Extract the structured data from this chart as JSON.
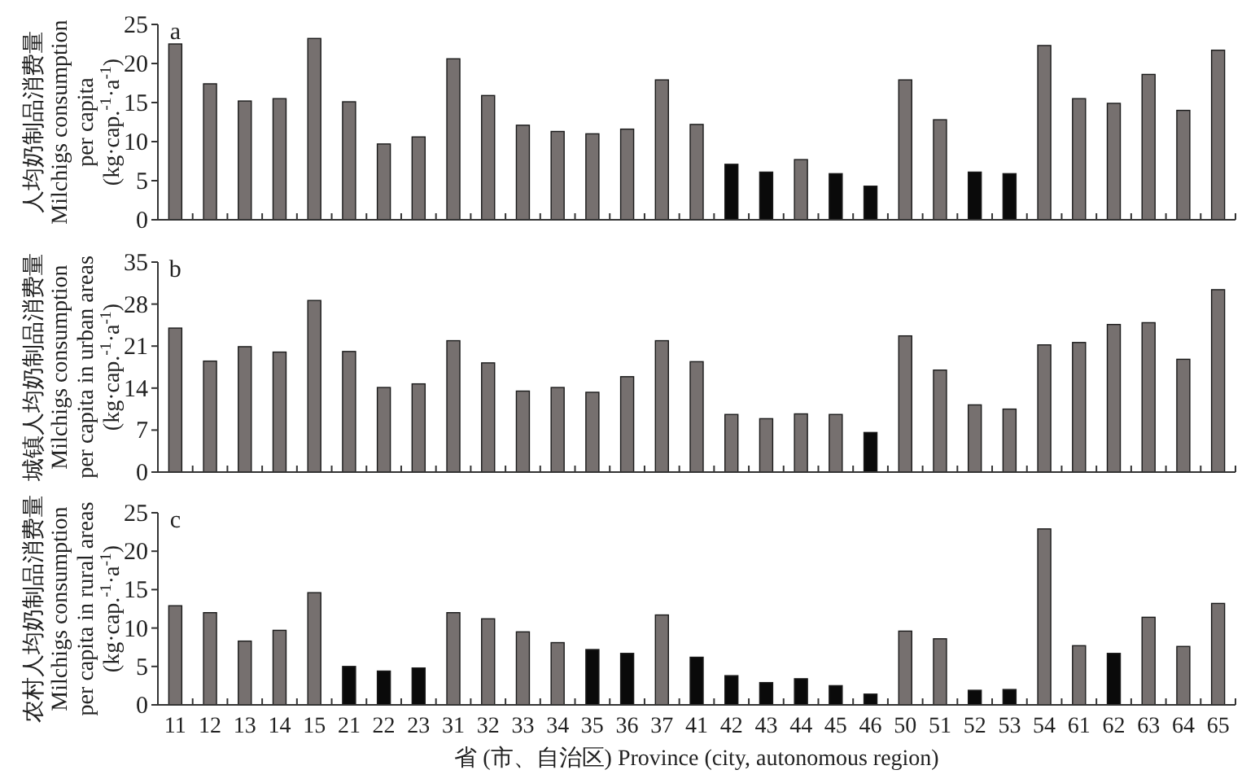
{
  "chart_data": [
    {
      "type": "bar",
      "categories": [
        null,
        null,
        null,
        null,
        null,
        null,
        null,
        null,
        null,
        null,
        null,
        null,
        null,
        null,
        null,
        null,
        null,
        null,
        null,
        null,
        null,
        null,
        null,
        null,
        null,
        null,
        null,
        null,
        null,
        null,
        null
      ],
      "values": [
        22.5,
        17.4,
        15.2,
        15.5,
        23.2,
        15.1,
        9.7,
        10.6,
        20.6,
        15.9,
        12.1,
        11.3,
        11.0,
        11.6,
        17.9,
        12.2,
        7.1,
        6.1,
        7.7,
        5.9,
        4.3,
        17.9,
        12.8,
        6.1,
        5.9,
        22.3,
        15.5,
        14.9,
        18.6,
        14.0,
        21.7
      ],
      "colors": [
        "#76706f",
        "#76706f",
        "#76706f",
        "#76706f",
        "#76706f",
        "#76706f",
        "#76706f",
        "#76706f",
        "#76706f",
        "#76706f",
        "#76706f",
        "#76706f",
        "#76706f",
        "#76706f",
        "#76706f",
        "#76706f",
        "#0a0a0a",
        "#0a0a0a",
        "#76706f",
        "#0a0a0a",
        "#0a0a0a",
        "#76706f",
        "#76706f",
        "#0a0a0a",
        "#0a0a0a",
        "#76706f",
        "#76706f",
        "#76706f",
        "#76706f",
        "#76706f",
        "#76706f"
      ],
      "ylabel": "人均奶制品消费量\nMilchigs consumption\nper capita\n(kg·cap.$^{-1}$·a$^{-1}$)",
      "ylim": [
        0,
        25
      ],
      "yticks": [
        0,
        5,
        10,
        15,
        20,
        25
      ],
      "tick_labels": "y",
      "annotations": [
        "a"
      ]
    },
    {
      "type": "bar",
      "categories": [
        null,
        null,
        null,
        null,
        null,
        null,
        null,
        null,
        null,
        null,
        null,
        null,
        null,
        null,
        null,
        null,
        null,
        null,
        null,
        null,
        null,
        null,
        null,
        null,
        null,
        null,
        null,
        null,
        null,
        null,
        null
      ],
      "values": [
        24.0,
        18.5,
        20.9,
        20.0,
        28.6,
        20.1,
        14.1,
        14.7,
        21.9,
        18.2,
        13.5,
        14.1,
        13.3,
        15.9,
        21.9,
        18.4,
        9.6,
        8.9,
        9.7,
        9.6,
        6.6,
        22.7,
        17.0,
        11.2,
        10.5,
        21.2,
        21.6,
        24.6,
        24.9,
        18.8,
        30.4
      ],
      "colors": [
        "#76706f",
        "#76706f",
        "#76706f",
        "#76706f",
        "#76706f",
        "#76706f",
        "#76706f",
        "#76706f",
        "#76706f",
        "#76706f",
        "#76706f",
        "#76706f",
        "#76706f",
        "#76706f",
        "#76706f",
        "#76706f",
        "#76706f",
        "#76706f",
        "#76706f",
        "#76706f",
        "#0a0a0a",
        "#76706f",
        "#76706f",
        "#76706f",
        "#76706f",
        "#76706f",
        "#76706f",
        "#76706f",
        "#76706f",
        "#76706f",
        "#76706f"
      ],
      "ylabel": "城镇人均奶制品消费量\nMilchigs consumption\nper capita in urban areas\n(kg·cap.$^{-1}$·a$^{-1}$)",
      "ylim": [
        0,
        35
      ],
      "yticks": [
        0,
        7,
        14,
        21,
        28,
        35
      ],
      "tick_labels": "y",
      "annotations": [
        "b"
      ]
    },
    {
      "type": "bar",
      "categories": [
        "11",
        "12",
        "13",
        "14",
        "15",
        "21",
        "22",
        "23",
        "31",
        "32",
        "33",
        "34",
        "35",
        "36",
        "37",
        "41",
        "42",
        "43",
        "44",
        "45",
        "46",
        "50",
        "51",
        "52",
        "53",
        "54",
        "61",
        "62",
        "63",
        "64",
        "65"
      ],
      "values": [
        12.9,
        12.0,
        8.3,
        9.7,
        14.6,
        5.0,
        4.4,
        4.8,
        12.0,
        11.2,
        9.5,
        8.1,
        7.2,
        6.7,
        11.7,
        6.2,
        3.8,
        2.9,
        3.4,
        2.5,
        1.4,
        9.6,
        8.6,
        1.9,
        2.0,
        22.9,
        7.7,
        6.7,
        11.4,
        7.6,
        13.2
      ],
      "colors": [
        "#76706f",
        "#76706f",
        "#76706f",
        "#76706f",
        "#76706f",
        "#0a0a0a",
        "#0a0a0a",
        "#0a0a0a",
        "#76706f",
        "#76706f",
        "#76706f",
        "#76706f",
        "#0a0a0a",
        "#0a0a0a",
        "#76706f",
        "#0a0a0a",
        "#0a0a0a",
        "#0a0a0a",
        "#0a0a0a",
        "#0a0a0a",
        "#0a0a0a",
        "#76706f",
        "#76706f",
        "#0a0a0a",
        "#0a0a0a",
        "#76706f",
        "#76706f",
        "#0a0a0a",
        "#76706f",
        "#76706f",
        "#76706f"
      ],
      "ylabel": "农村人均奶制品消费量\nMilchigs consumption\nper capita in rural areas\n(kg·cap.$^{-1}$·a$^{-1}$)",
      "xlabel": "省 (市、自治区) Province (city, autonomous region)",
      "ylim": [
        0,
        25
      ],
      "yticks": [
        0,
        5,
        10,
        15,
        20,
        25
      ],
      "annotations": [
        "c"
      ]
    }
  ]
}
